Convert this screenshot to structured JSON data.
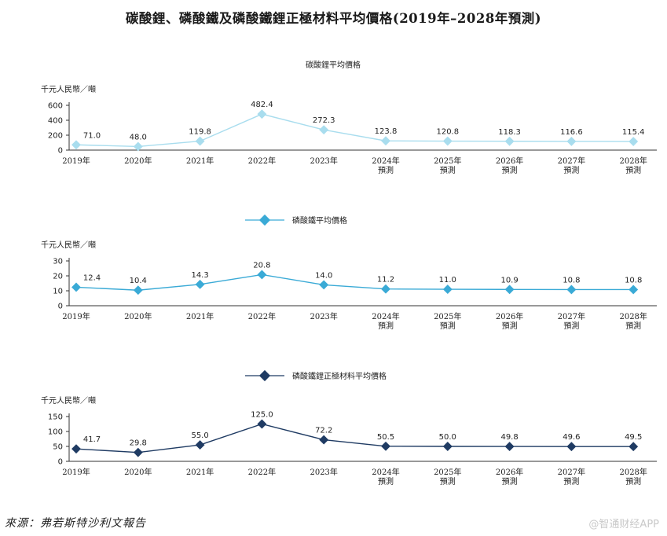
{
  "title": "碳酸鋰、磷酸鐵及磷酸鐵鋰正極材料平均價格(2019年–2028年預測)",
  "source": "來源：弗若斯特沙利文報告",
  "watermark": "@智通财经APP",
  "chart_data": [
    {
      "type": "line",
      "title": "碳酸鋰平均價格",
      "legend_style": "title",
      "ylabel": "千元人民幣／噸",
      "ylim": [
        0,
        600
      ],
      "yticks": [
        0,
        200,
        400,
        600
      ],
      "categories": [
        [
          "2019年"
        ],
        [
          "2020年"
        ],
        [
          "2021年"
        ],
        [
          "2022年"
        ],
        [
          "2023年"
        ],
        [
          "2024年",
          "預測"
        ],
        [
          "2025年",
          "預測"
        ],
        [
          "2026年",
          "預測"
        ],
        [
          "2027年",
          "預測"
        ],
        [
          "2028年",
          "預測"
        ]
      ],
      "values": [
        71.0,
        48.0,
        119.8,
        482.4,
        272.3,
        123.8,
        120.8,
        118.3,
        116.6,
        115.4
      ],
      "labels": [
        "71.0",
        "48.0",
        "119.8",
        "482.4",
        "272.3",
        "123.8",
        "120.8",
        "118.3",
        "116.6",
        "115.4"
      ],
      "color": "#a9ddee"
    },
    {
      "type": "line",
      "title": "磷酸鐵平均價格",
      "legend_style": "marker",
      "ylabel": "千元人民幣／噸",
      "ylim": [
        0,
        30
      ],
      "yticks": [
        0,
        10,
        20,
        30
      ],
      "categories": [
        [
          "2019年"
        ],
        [
          "2020年"
        ],
        [
          "2021年"
        ],
        [
          "2022年"
        ],
        [
          "2023年"
        ],
        [
          "2024年",
          "預測"
        ],
        [
          "2025年",
          "預測"
        ],
        [
          "2026年",
          "預測"
        ],
        [
          "2027年",
          "預測"
        ],
        [
          "2028年",
          "預測"
        ]
      ],
      "values": [
        12.4,
        10.4,
        14.3,
        20.8,
        14.0,
        11.2,
        11.0,
        10.9,
        10.8,
        10.8
      ],
      "labels": [
        "12.4",
        "10.4",
        "14.3",
        "20.8",
        "14.0",
        "11.2",
        "11.0",
        "10.9",
        "10.8",
        "10.8"
      ],
      "color": "#3aaad6"
    },
    {
      "type": "line",
      "title": "磷酸鐵鋰正極材料平均價格",
      "legend_style": "marker",
      "ylabel": "千元人民幣／噸",
      "ylim": [
        0,
        150
      ],
      "yticks": [
        0,
        50,
        100,
        150
      ],
      "categories": [
        [
          "2019年"
        ],
        [
          "2020年"
        ],
        [
          "2021年"
        ],
        [
          "2022年"
        ],
        [
          "2023年"
        ],
        [
          "2024年",
          "預測"
        ],
        [
          "2025年",
          "預測"
        ],
        [
          "2026年",
          "預測"
        ],
        [
          "2027年",
          "預測"
        ],
        [
          "2028年",
          "預測"
        ]
      ],
      "values": [
        41.7,
        29.8,
        55.0,
        125.0,
        72.2,
        50.5,
        50.0,
        49.8,
        49.6,
        49.5
      ],
      "labels": [
        "41.7",
        "29.8",
        "55.0",
        "125.0",
        "72.2",
        "50.5",
        "50.0",
        "49.8",
        "49.6",
        "49.5"
      ],
      "color": "#1f3b63"
    }
  ]
}
